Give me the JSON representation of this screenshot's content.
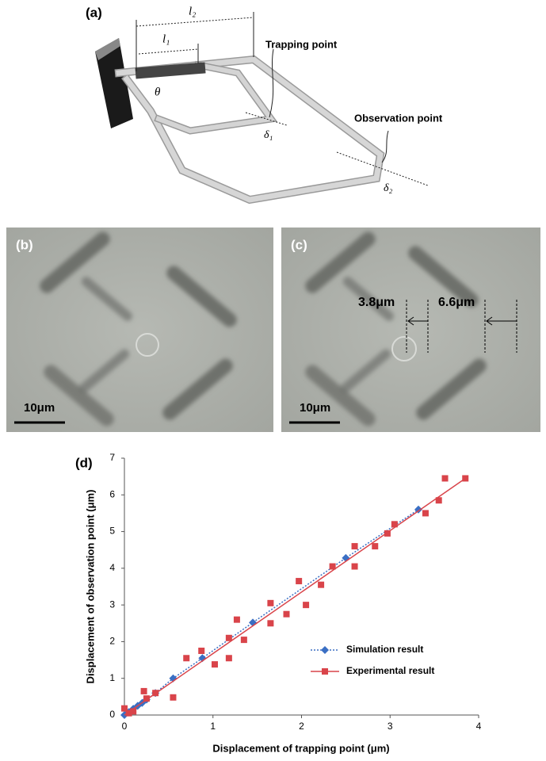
{
  "panel_a": {
    "label": "(a)",
    "l2": "l₂",
    "l1": "l₁",
    "theta": "θ",
    "trapping_point": "Trapping point",
    "observation_point": "Observation point",
    "delta1": "δ₁",
    "delta2": "δ₂"
  },
  "panel_b": {
    "label": "(b)",
    "scale_bar": "10μm"
  },
  "panel_c": {
    "label": "(c)",
    "scale_bar": "10μm",
    "measure1": "3.8μm",
    "measure2": "6.6μm"
  },
  "chart_data": {
    "type": "scatter",
    "panel_label": "(d)",
    "xlabel": "Displacement of trapping point (μm)",
    "ylabel": "Displacement of observation point (μm)",
    "xlim": [
      0,
      4
    ],
    "xticks": [
      0,
      1,
      2,
      3,
      4
    ],
    "ylim": [
      0,
      7
    ],
    "yticks": [
      0,
      1,
      2,
      3,
      4,
      5,
      6,
      7
    ],
    "legend": "lower right",
    "series": [
      {
        "name": "Simulation result",
        "color": "#3a6fc4",
        "marker": "diamond",
        "line_style": "dotted",
        "x": [
          0,
          0.05,
          0.1,
          0.15,
          0.2,
          0.25,
          0.35,
          0.55,
          0.88,
          1.45,
          2.5,
          3.32
        ],
        "values": [
          0,
          0.08,
          0.17,
          0.25,
          0.33,
          0.42,
          0.6,
          1.0,
          1.55,
          2.52,
          4.28,
          5.6
        ]
      },
      {
        "name": "Experimental result",
        "color": "#d9444a",
        "marker": "square",
        "line_style": "none",
        "x": [
          0,
          0.05,
          0.1,
          0.22,
          0.25,
          0.35,
          0.55,
          0.7,
          0.87,
          1.02,
          1.18,
          1.18,
          1.27,
          1.35,
          1.65,
          1.65,
          1.83,
          1.97,
          2.05,
          2.22,
          2.35,
          2.6,
          2.6,
          2.83,
          2.97,
          3.05,
          3.4,
          3.55,
          3.62,
          3.85
        ],
        "values": [
          0.18,
          0.05,
          0.1,
          0.65,
          0.45,
          0.6,
          0.48,
          1.55,
          1.75,
          1.38,
          2.1,
          1.55,
          2.6,
          2.05,
          3.05,
          2.5,
          2.75,
          3.65,
          3.0,
          3.55,
          4.05,
          4.6,
          4.05,
          4.6,
          4.95,
          5.2,
          5.5,
          5.85,
          6.45,
          6.45
        ],
        "trend_x": [
          0,
          3.85
        ],
        "trend_y": [
          0,
          6.45
        ]
      }
    ]
  }
}
